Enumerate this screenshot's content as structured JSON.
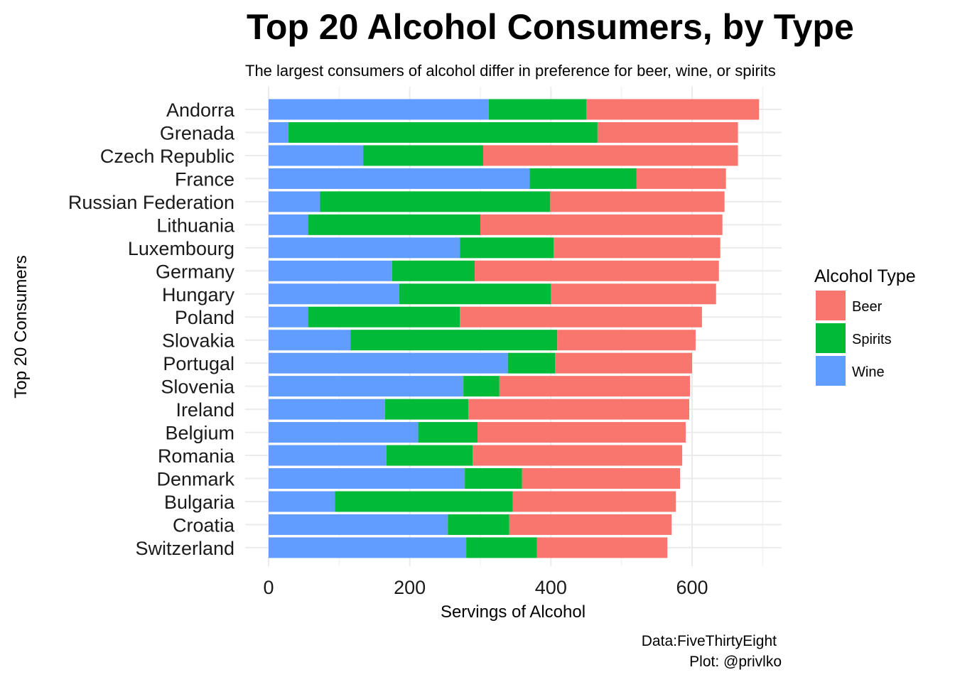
{
  "chart_data": {
    "type": "bar",
    "orientation": "horizontal",
    "stacked": true,
    "title": "Top 20 Alcohol Consumers, by Type",
    "subtitle": "The largest consumers of alcohol differ in preference for beer, wine, or spirits",
    "xlabel": "Servings of Alcohol",
    "ylabel": "Top 20 Consumers",
    "xlim": [
      0,
      700
    ],
    "xticks": [
      0,
      200,
      400,
      600
    ],
    "grid": true,
    "legend_title": "Alcohol Type",
    "legend_position": "right",
    "caption_lines": [
      "Data:FiveThirtyEight",
      "Plot: @privlko"
    ],
    "categories": [
      "Andorra",
      "Grenada",
      "Czech Republic",
      "France",
      "Russian Federation",
      "Lithuania",
      "Luxembourg",
      "Germany",
      "Hungary",
      "Poland",
      "Slovakia",
      "Portugal",
      "Slovenia",
      "Ireland",
      "Belgium",
      "Romania",
      "Denmark",
      "Bulgaria",
      "Croatia",
      "Switzerland"
    ],
    "series": [
      {
        "name": "Wine",
        "color": "#619CFF",
        "values": [
          312,
          28,
          134,
          370,
          73,
          56,
          271,
          175,
          185,
          56,
          116,
          339,
          276,
          165,
          212,
          167,
          278,
          94,
          254,
          280
        ]
      },
      {
        "name": "Spirits",
        "color": "#00BA38",
        "values": [
          138,
          438,
          170,
          151,
          326,
          244,
          133,
          117,
          215,
          215,
          293,
          67,
          51,
          118,
          84,
          122,
          81,
          252,
          87,
          100
        ]
      },
      {
        "name": "Beer",
        "color": "#F8766D",
        "values": [
          245,
          199,
          361,
          127,
          247,
          343,
          236,
          346,
          234,
          343,
          196,
          194,
          270,
          313,
          295,
          297,
          224,
          231,
          230,
          185
        ]
      }
    ],
    "legend_order": [
      "Beer",
      "Spirits",
      "Wine"
    ]
  }
}
